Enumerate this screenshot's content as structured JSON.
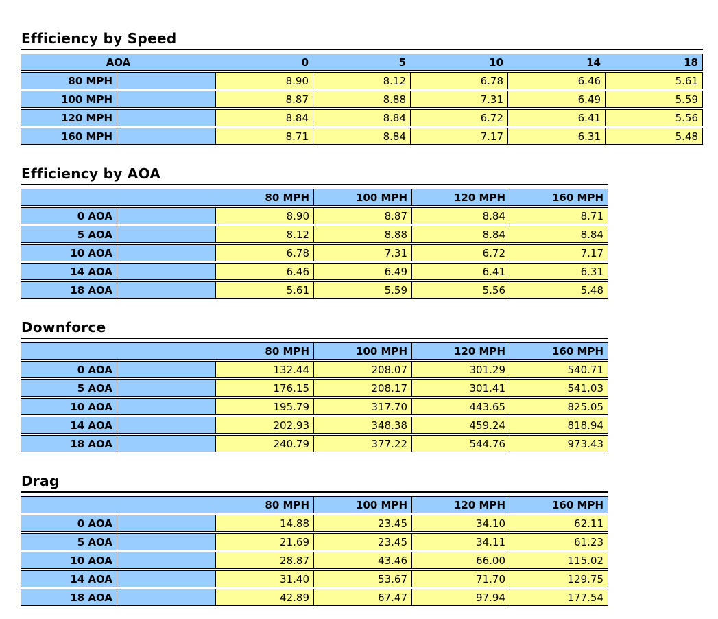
{
  "document": {
    "background": "#FFFFFF"
  },
  "colors": {
    "header_fill": "#99CCFF",
    "value_fill": "#FFFF99",
    "grid_line": "#000000",
    "text": "#000000"
  },
  "tables": [
    {
      "title": "Efficiency by Speed",
      "corner_label": "AOA",
      "col_headers": [
        "0",
        "5",
        "10",
        "14",
        "18"
      ],
      "rows": [
        {
          "label": "80 MPH",
          "values": [
            "8.90",
            "8.12",
            "6.78",
            "6.46",
            "5.61"
          ]
        },
        {
          "label": "100 MPH",
          "values": [
            "8.87",
            "8.88",
            "7.31",
            "6.49",
            "5.59"
          ]
        },
        {
          "label": "120 MPH",
          "values": [
            "8.84",
            "8.84",
            "6.72",
            "6.41",
            "5.56"
          ]
        },
        {
          "label": "160 MPH",
          "values": [
            "8.71",
            "8.84",
            "7.17",
            "6.31",
            "5.48"
          ]
        }
      ]
    },
    {
      "title": "Efficiency by AOA",
      "corner_label": "",
      "col_headers": [
        "80 MPH",
        "100 MPH",
        "120 MPH",
        "160 MPH"
      ],
      "rows": [
        {
          "label": "0 AOA",
          "values": [
            "8.90",
            "8.87",
            "8.84",
            "8.71"
          ]
        },
        {
          "label": "5 AOA",
          "values": [
            "8.12",
            "8.88",
            "8.84",
            "8.84"
          ]
        },
        {
          "label": "10 AOA",
          "values": [
            "6.78",
            "7.31",
            "6.72",
            "7.17"
          ]
        },
        {
          "label": "14 AOA",
          "values": [
            "6.46",
            "6.49",
            "6.41",
            "6.31"
          ]
        },
        {
          "label": "18 AOA",
          "values": [
            "5.61",
            "5.59",
            "5.56",
            "5.48"
          ]
        }
      ]
    },
    {
      "title": "Downforce",
      "corner_label": "",
      "col_headers": [
        "80 MPH",
        "100 MPH",
        "120 MPH",
        "160 MPH"
      ],
      "rows": [
        {
          "label": "0 AOA",
          "values": [
            "132.44",
            "208.07",
            "301.29",
            "540.71"
          ]
        },
        {
          "label": "5 AOA",
          "values": [
            "176.15",
            "208.17",
            "301.41",
            "541.03"
          ]
        },
        {
          "label": "10 AOA",
          "values": [
            "195.79",
            "317.70",
            "443.65",
            "825.05"
          ]
        },
        {
          "label": "14 AOA",
          "values": [
            "202.93",
            "348.38",
            "459.24",
            "818.94"
          ]
        },
        {
          "label": "18 AOA",
          "values": [
            "240.79",
            "377.22",
            "544.76",
            "973.43"
          ]
        }
      ]
    },
    {
      "title": "Drag",
      "corner_label": "",
      "col_headers": [
        "80 MPH",
        "100 MPH",
        "120 MPH",
        "160 MPH"
      ],
      "rows": [
        {
          "label": "0 AOA",
          "values": [
            "14.88",
            "23.45",
            "34.10",
            "62.11"
          ]
        },
        {
          "label": "5 AOA",
          "values": [
            "21.69",
            "23.45",
            "34.11",
            "61.23"
          ]
        },
        {
          "label": "10 AOA",
          "values": [
            "28.87",
            "43.46",
            "66.00",
            "115.02"
          ]
        },
        {
          "label": "14 AOA",
          "values": [
            "31.40",
            "53.67",
            "71.70",
            "129.75"
          ]
        },
        {
          "label": "18 AOA",
          "values": [
            "42.89",
            "67.47",
            "97.94",
            "177.54"
          ]
        }
      ]
    }
  ]
}
